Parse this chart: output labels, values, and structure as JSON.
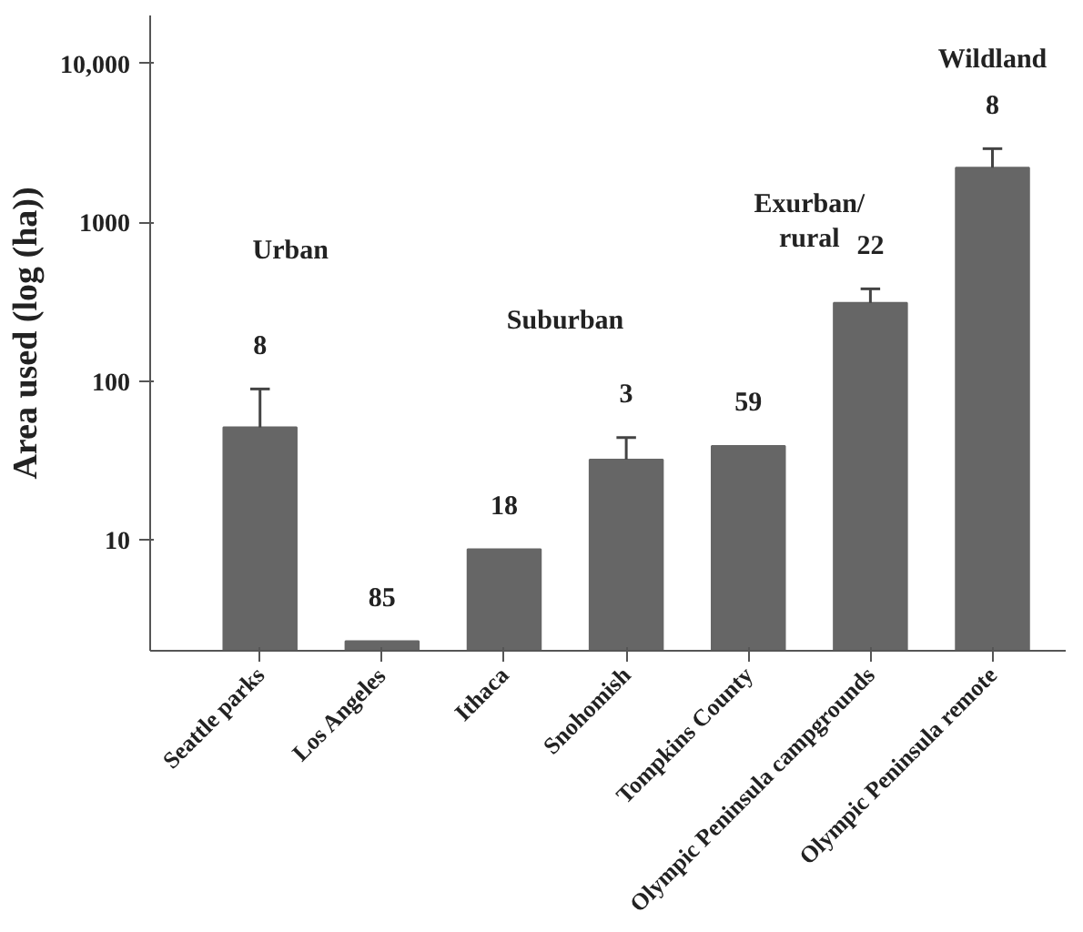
{
  "chart_data": {
    "type": "bar",
    "ylabel": "Area used (log (ha))",
    "categories": [
      "Seattle parks",
      "Los Angeles",
      "Ithaca",
      "Snohomish",
      "Tompkins County",
      "Olympic Peninsula campgrounds",
      "Olympic Peninsula remote"
    ],
    "values": [
      51,
      2.3,
      8.7,
      32,
      39,
      310,
      2200
    ],
    "errors": [
      [
        51,
        89
      ],
      null,
      null,
      [
        32,
        44
      ],
      null,
      [
        310,
        380
      ],
      [
        2200,
        2900
      ]
    ],
    "color": "#666666",
    "log": true,
    "ylim": [
      2,
      20000
    ],
    "yticks": [
      10,
      100,
      1000,
      {
        "value": 10000,
        "label": "10,000"
      }
    ],
    "grid": false,
    "annotations": [
      "8",
      "85",
      "18",
      "3",
      "59",
      "22",
      "8",
      "Urban",
      "Suburban",
      "Exurban/\nrural",
      "Wildland"
    ]
  }
}
